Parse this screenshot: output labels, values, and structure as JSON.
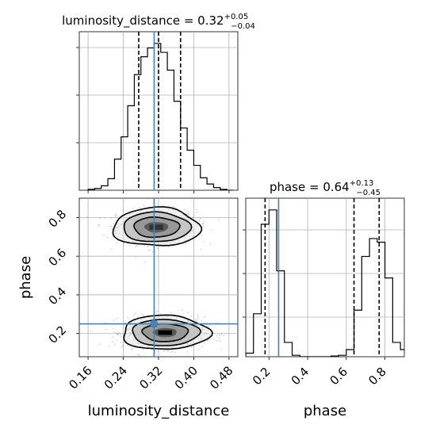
{
  "chart_data": {
    "type": "corner",
    "parameters": [
      "luminosity_distance",
      "phase"
    ],
    "truth": {
      "luminosity_distance": 0.31,
      "phase": 0.25
    },
    "colors": {
      "truth": "#4682b4",
      "hist": "#000000",
      "grid": "#b0b0b0",
      "scatter": "#7f7f7f"
    },
    "grid": true,
    "panels": {
      "lum_hist": {
        "title_main": "luminosity_distance = 0.32",
        "title_sup": "+0.05",
        "title_sub": "−0.04",
        "xlim": [
          0.14,
          0.5
        ],
        "quantiles": [
          0.275,
          0.32,
          0.37
        ],
        "bin_edges": [
          0.16,
          0.175,
          0.19,
          0.205,
          0.22,
          0.235,
          0.25,
          0.265,
          0.28,
          0.295,
          0.31,
          0.325,
          0.34,
          0.355,
          0.37,
          0.385,
          0.4,
          0.415,
          0.43,
          0.445,
          0.46,
          0.475,
          0.49
        ],
        "counts": [
          1,
          2,
          5,
          13,
          35,
          60,
          95,
          130,
          150,
          160,
          165,
          155,
          135,
          100,
          70,
          45,
          28,
          14,
          7,
          3,
          1,
          0
        ]
      },
      "phase_hist": {
        "title_main": "phase = 0.64",
        "title_sup": "+0.13",
        "title_sub": "−0.45",
        "xlim": [
          0.08,
          0.9
        ],
        "quantiles": [
          0.18,
          0.64,
          0.77
        ],
        "bin_edges": [
          0.08,
          0.12,
          0.16,
          0.2,
          0.24,
          0.28,
          0.32,
          0.36,
          0.4,
          0.44,
          0.48,
          0.52,
          0.56,
          0.6,
          0.64,
          0.68,
          0.72,
          0.76,
          0.8,
          0.84,
          0.88,
          0.9
        ],
        "counts": [
          5,
          60,
          185,
          205,
          120,
          20,
          2,
          0,
          0,
          0,
          0,
          1,
          2,
          10,
          65,
          140,
          165,
          160,
          110,
          20,
          10
        ]
      },
      "joint": {
        "xlim": [
          0.14,
          0.5
        ],
        "ylim": [
          0.08,
          0.9
        ],
        "modes": [
          {
            "x_center": 0.315,
            "y_center": 0.75,
            "x_sigma": 0.045,
            "y_sigma": 0.045
          },
          {
            "x_center": 0.335,
            "y_center": 0.205,
            "x_sigma": 0.045,
            "y_sigma": 0.04
          }
        ]
      }
    },
    "axes": {
      "luminosity_distance": {
        "label": "luminosity_distance",
        "ticks": [
          0.16,
          0.24,
          0.32,
          0.4,
          0.48
        ],
        "tick_labels": [
          "0.16",
          "0.24",
          "0.32",
          "0.40",
          "0.48"
        ]
      },
      "phase_y": {
        "label": "phase",
        "ticks": [
          0.2,
          0.4,
          0.6,
          0.8
        ],
        "tick_labels": [
          "0.2",
          "0.4",
          "0.6",
          "0.8"
        ]
      },
      "phase_x": {
        "label": "phase",
        "ticks": [
          0.2,
          0.4,
          0.6,
          0.8
        ],
        "tick_labels": [
          "0.2",
          "0.4",
          "0.6",
          "0.8"
        ]
      }
    }
  }
}
